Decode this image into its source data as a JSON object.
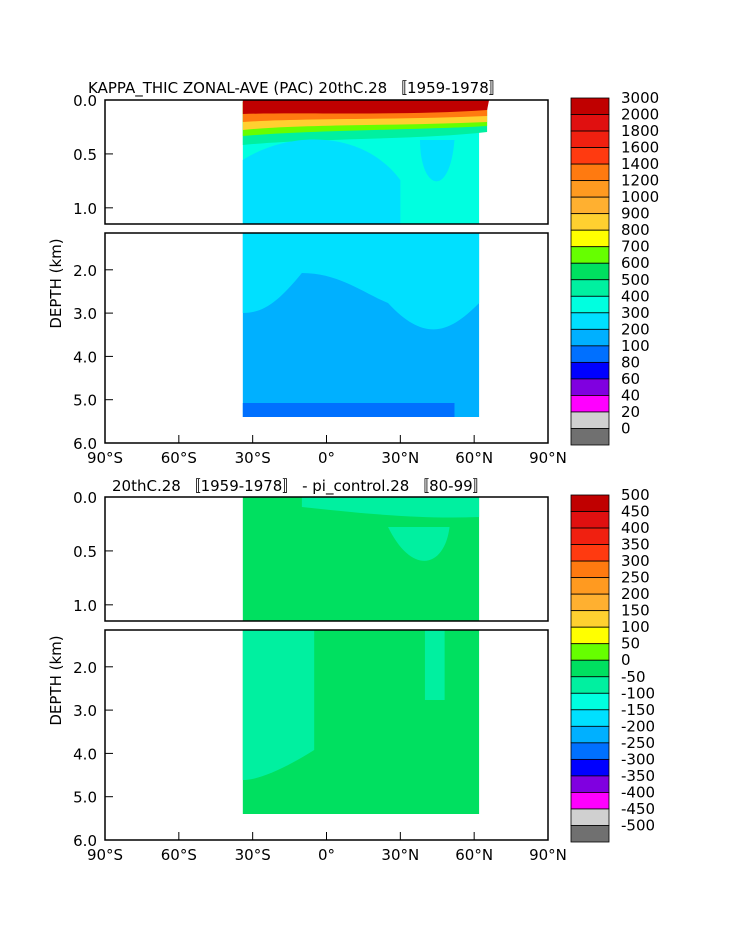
{
  "chart_data": [
    {
      "type": "heatmap",
      "title": "KAPPA_THIC ZONAL-AVE (PAC) 20thC.28 〚1959-1978〛",
      "ylabel": "DEPTH (km)",
      "xlabel": "",
      "x_ticks": [
        "90°S",
        "60°S",
        "30°S",
        "0°",
        "30°N",
        "60°N",
        "90°N"
      ],
      "y_ticks_upper": [
        "0.0",
        "0.5",
        "1.0"
      ],
      "y_ticks_lower": [
        "2.0",
        "3.0",
        "4.0",
        "5.0",
        "6.0"
      ],
      "xlim": [
        -90,
        90
      ],
      "ylim_upper": [
        0,
        1.15
      ],
      "ylim_lower": [
        1.15,
        6.0
      ],
      "colorbar": {
        "labels": [
          "3000",
          "2000",
          "1800",
          "1600",
          "1400",
          "1200",
          "1000",
          "900",
          "800",
          "700",
          "600",
          "500",
          "400",
          "300",
          "200",
          "100",
          "80",
          "60",
          "40",
          "20",
          "0"
        ],
        "colors": [
          "#c00000",
          "#e01010",
          "#f02010",
          "#ff3a10",
          "#ff7a10",
          "#ff9a20",
          "#ffb030",
          "#ffd030",
          "#ffff00",
          "#66ff00",
          "#00e060",
          "#00f0a0",
          "#00ffe0",
          "#00e0ff",
          "#00b0ff",
          "#0070ff",
          "#0000ff",
          "#8000e0",
          "#ff00ff",
          "#d0d0d0",
          "#707070"
        ]
      }
    },
    {
      "type": "heatmap",
      "title": "20thC.28 〚1959-1978〛 - pi_control.28 〚80-99〛",
      "ylabel": "DEPTH (km)",
      "xlabel": "",
      "x_ticks": [
        "90°S",
        "60°S",
        "30°S",
        "0°",
        "30°N",
        "60°N",
        "90°N"
      ],
      "y_ticks_upper": [
        "0.0",
        "0.5",
        "1.0"
      ],
      "y_ticks_lower": [
        "2.0",
        "3.0",
        "4.0",
        "5.0",
        "6.0"
      ],
      "xlim": [
        -90,
        90
      ],
      "ylim_upper": [
        0,
        1.15
      ],
      "ylim_lower": [
        1.15,
        6.0
      ],
      "colorbar": {
        "labels": [
          "500",
          "450",
          "400",
          "350",
          "300",
          "250",
          "200",
          "150",
          "100",
          "50",
          "0",
          "-50",
          "-100",
          "-150",
          "-200",
          "-250",
          "-300",
          "-350",
          "-400",
          "-450",
          "-500"
        ],
        "colors": [
          "#c00000",
          "#e01010",
          "#f02010",
          "#ff3a10",
          "#ff7a10",
          "#ff9a20",
          "#ffb030",
          "#ffd030",
          "#ffff00",
          "#66ff00",
          "#00e060",
          "#00f0a0",
          "#00ffe0",
          "#00e0ff",
          "#00b0ff",
          "#0070ff",
          "#0000ff",
          "#8000e0",
          "#ff00ff",
          "#d0d0d0",
          "#707070"
        ]
      }
    }
  ]
}
